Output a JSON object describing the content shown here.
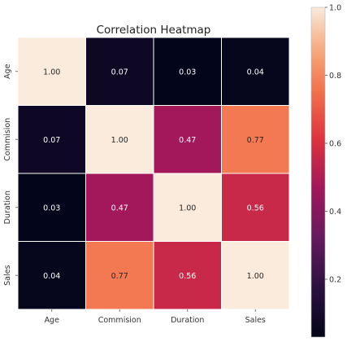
{
  "chart_data": {
    "type": "heatmap",
    "title": "Correlation Heatmap",
    "x_categories": [
      "Age",
      "Commision",
      "Duration",
      "Sales"
    ],
    "y_categories": [
      "Age",
      "Commision",
      "Duration",
      "Sales"
    ],
    "values": [
      [
        1.0,
        0.07,
        0.03,
        0.04
      ],
      [
        0.07,
        1.0,
        0.47,
        0.77
      ],
      [
        0.03,
        0.47,
        1.0,
        0.56
      ],
      [
        0.04,
        0.77,
        0.56,
        1.0
      ]
    ],
    "value_labels": [
      [
        "1.00",
        "0.07",
        "0.03",
        "0.04"
      ],
      [
        "0.07",
        "1.00",
        "0.47",
        "0.77"
      ],
      [
        "0.03",
        "0.47",
        "1.00",
        "0.56"
      ],
      [
        "0.04",
        "0.77",
        "0.56",
        "1.00"
      ]
    ],
    "colormap": "rocket",
    "colorbar": {
      "range": [
        0.03,
        1.0
      ],
      "ticks": [
        0.2,
        0.4,
        0.6,
        0.8,
        1.0
      ],
      "tick_labels": [
        "0.2",
        "0.4",
        "0.6",
        "0.8",
        "1.0"
      ],
      "placement": "right"
    },
    "grid": false
  }
}
